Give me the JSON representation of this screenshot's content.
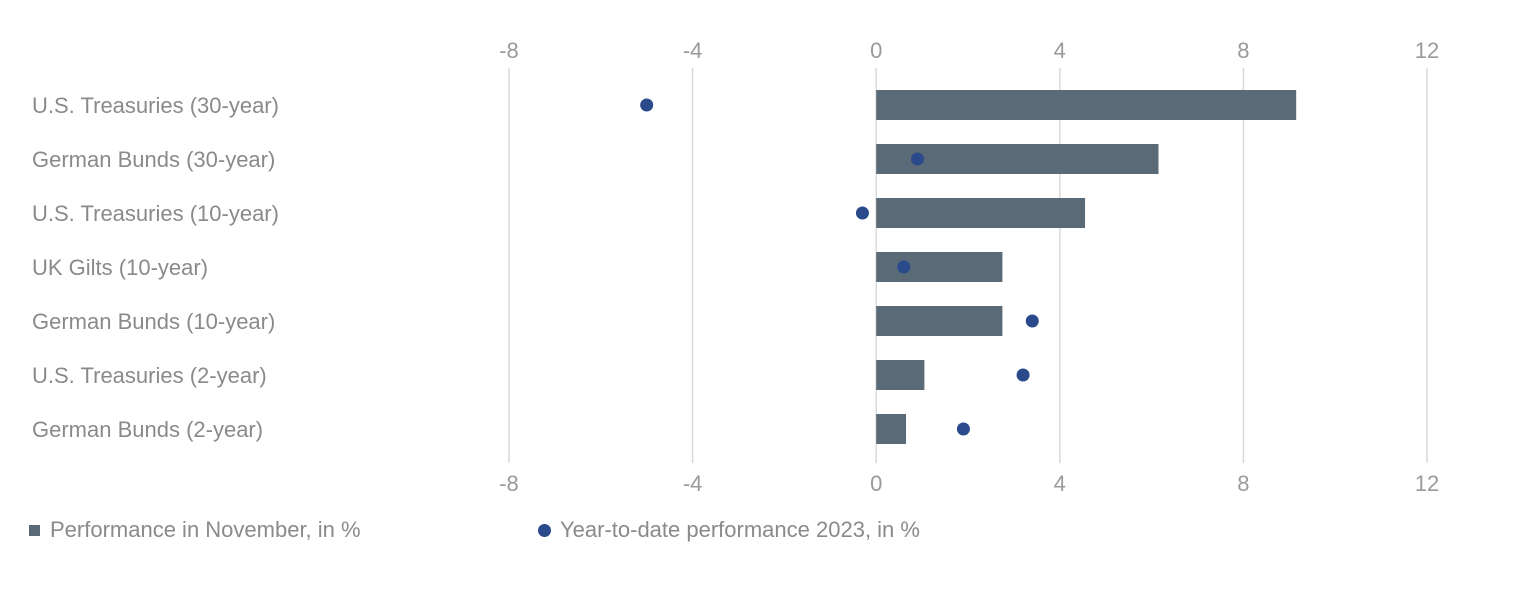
{
  "chart_data": {
    "type": "bar",
    "orientation": "horizontal",
    "categories": [
      "U.S. Treasuries (30-year)",
      "German Bunds (30-year)",
      "U.S. Treasuries (10-year)",
      "UK Gilts (10-year)",
      "German Bunds (10-year)",
      "U.S. Treasuries (2-year)",
      "German Bunds (2-year)"
    ],
    "series": [
      {
        "name": "Performance in November, in %",
        "mark": "bar",
        "color": "#5a6b77",
        "values": [
          9.15,
          6.15,
          4.55,
          2.75,
          2.75,
          1.05,
          0.65
        ]
      },
      {
        "name": "Year-to-date performance 2023, in %",
        "mark": "dot",
        "color": "#2a4a8c",
        "values": [
          -5.0,
          0.9,
          -0.3,
          0.6,
          3.4,
          3.2,
          1.9
        ]
      }
    ],
    "xlim": [
      -8,
      12
    ],
    "xticks": [
      "-8",
      "-4",
      "0",
      "4",
      "8",
      "12"
    ],
    "grid": true,
    "legend_position": "bottom-left"
  }
}
